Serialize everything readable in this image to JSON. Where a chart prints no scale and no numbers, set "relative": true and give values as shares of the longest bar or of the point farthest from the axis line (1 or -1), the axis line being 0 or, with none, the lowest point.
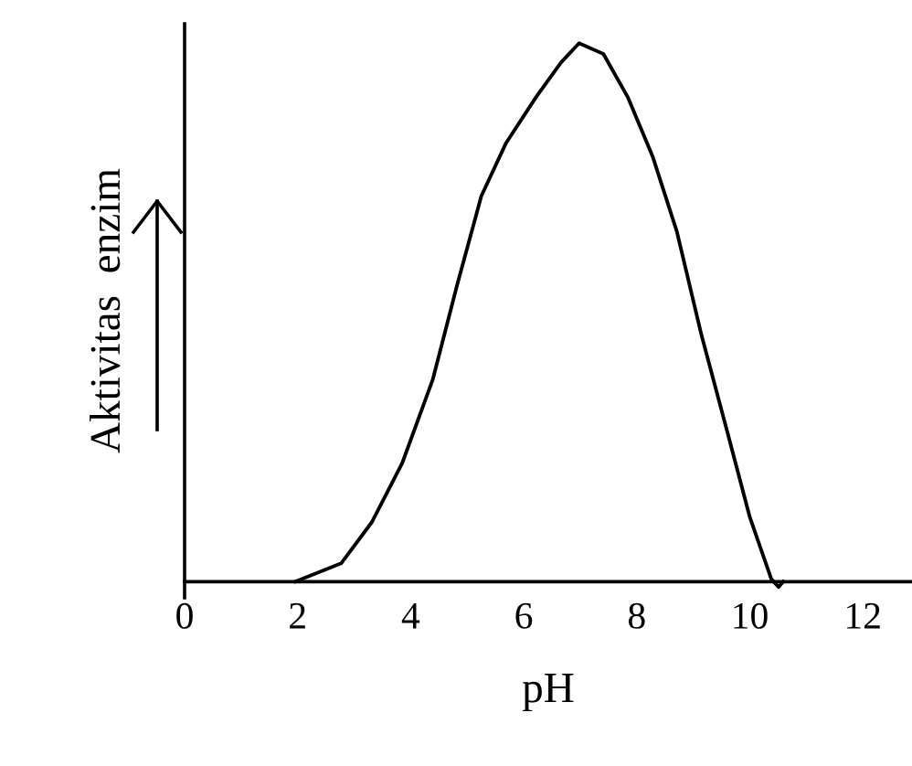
{
  "chart_data": {
    "type": "line",
    "xlabel": "pH",
    "ylabel": "Aktivitas  enzim",
    "relative": true,
    "xlim": [
      0,
      12.87
    ],
    "xticks": [
      0,
      2,
      4,
      6,
      8,
      10,
      12
    ],
    "tick_labels": "x",
    "marker": "none",
    "line_style": "solid",
    "series": [
      {
        "color": "#000000",
        "x": [
          1.96,
          2.77,
          3.31,
          3.85,
          4.39,
          4.82,
          5.25,
          5.69,
          6.22,
          6.66,
          6.98,
          7.41,
          7.84,
          8.28,
          8.71,
          9.14,
          9.58,
          10.0,
          10.38,
          10.51,
          10.59
        ],
        "values": [
          0,
          0.034,
          0.11,
          0.22,
          0.375,
          0.55,
          0.716,
          0.815,
          0.9,
          0.964,
          1.0,
          0.98,
          0.9,
          0.79,
          0.65,
          0.46,
          0.287,
          0.12,
          0.005,
          -0.01,
          0
        ]
      }
    ]
  }
}
